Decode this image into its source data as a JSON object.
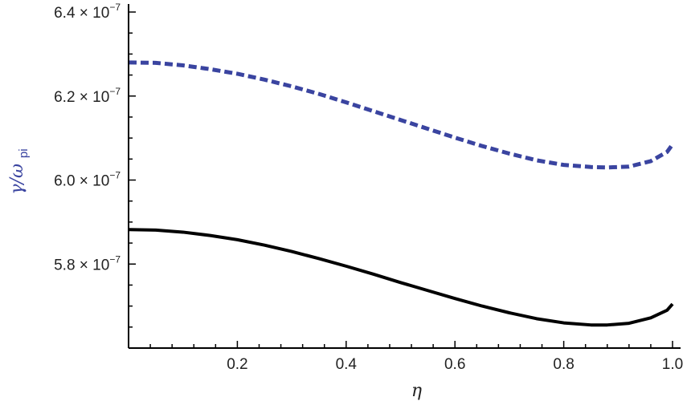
{
  "chart_data": {
    "type": "line",
    "xlabel": "η",
    "ylabel": {
      "main": "γ/ω",
      "subscript": "pi"
    },
    "xlim": [
      0.0,
      1.0
    ],
    "ylim": [
      5.6e-07,
      6.4e-07
    ],
    "x_ticks": [
      {
        "value": 0.2,
        "label": "0.2"
      },
      {
        "value": 0.4,
        "label": "0.4"
      },
      {
        "value": 0.6,
        "label": "0.6"
      },
      {
        "value": 0.8,
        "label": "0.8"
      },
      {
        "value": 1.0,
        "label": "1.0"
      }
    ],
    "y_ticks": [
      {
        "value": 5.8e-07,
        "mantissa": "5.8",
        "base": "× 10",
        "exponent": "−7"
      },
      {
        "value": 6e-07,
        "mantissa": "6.0",
        "base": "× 10",
        "exponent": "−7"
      },
      {
        "value": 6.2e-07,
        "mantissa": "6.2",
        "base": "× 10",
        "exponent": "−7"
      },
      {
        "value": 6.4e-07,
        "mantissa": "6.4",
        "base": "× 10",
        "exponent": "−7"
      }
    ],
    "series": [
      {
        "style": "dashed",
        "color": "#3a44a0",
        "x": [
          0.0,
          0.05,
          0.1,
          0.15,
          0.2,
          0.25,
          0.3,
          0.35,
          0.4,
          0.45,
          0.5,
          0.55,
          0.6,
          0.65,
          0.7,
          0.75,
          0.8,
          0.85,
          0.88,
          0.92,
          0.96,
          0.99,
          1.0
        ],
        "y": [
          6.28e-07,
          6.279e-07,
          6.273e-07,
          6.264e-07,
          6.253e-07,
          6.239e-07,
          6.223e-07,
          6.205e-07,
          6.185e-07,
          6.164e-07,
          6.143e-07,
          6.122e-07,
          6.101e-07,
          6.081e-07,
          6.063e-07,
          6.047e-07,
          6.036e-07,
          6.031e-07,
          6.03e-07,
          6.032e-07,
          6.045e-07,
          6.067e-07,
          6.085e-07
        ]
      },
      {
        "style": "solid",
        "color": "#000000",
        "x": [
          0.0,
          0.05,
          0.1,
          0.15,
          0.2,
          0.25,
          0.3,
          0.35,
          0.4,
          0.45,
          0.5,
          0.55,
          0.6,
          0.65,
          0.7,
          0.75,
          0.8,
          0.85,
          0.88,
          0.92,
          0.96,
          0.99,
          1.0
        ],
        "y": [
          5.882e-07,
          5.881e-07,
          5.876e-07,
          5.868e-07,
          5.858e-07,
          5.845e-07,
          5.83e-07,
          5.813e-07,
          5.795e-07,
          5.776e-07,
          5.756e-07,
          5.737e-07,
          5.718e-07,
          5.7e-07,
          5.684e-07,
          5.67e-07,
          5.66e-07,
          5.655e-07,
          5.655e-07,
          5.659e-07,
          5.672e-07,
          5.69e-07,
          5.705e-07
        ]
      }
    ],
    "grid": false,
    "colors": {
      "axis": "#000000",
      "ylabel": "#3a44a0",
      "xlabel": "#222222"
    }
  }
}
